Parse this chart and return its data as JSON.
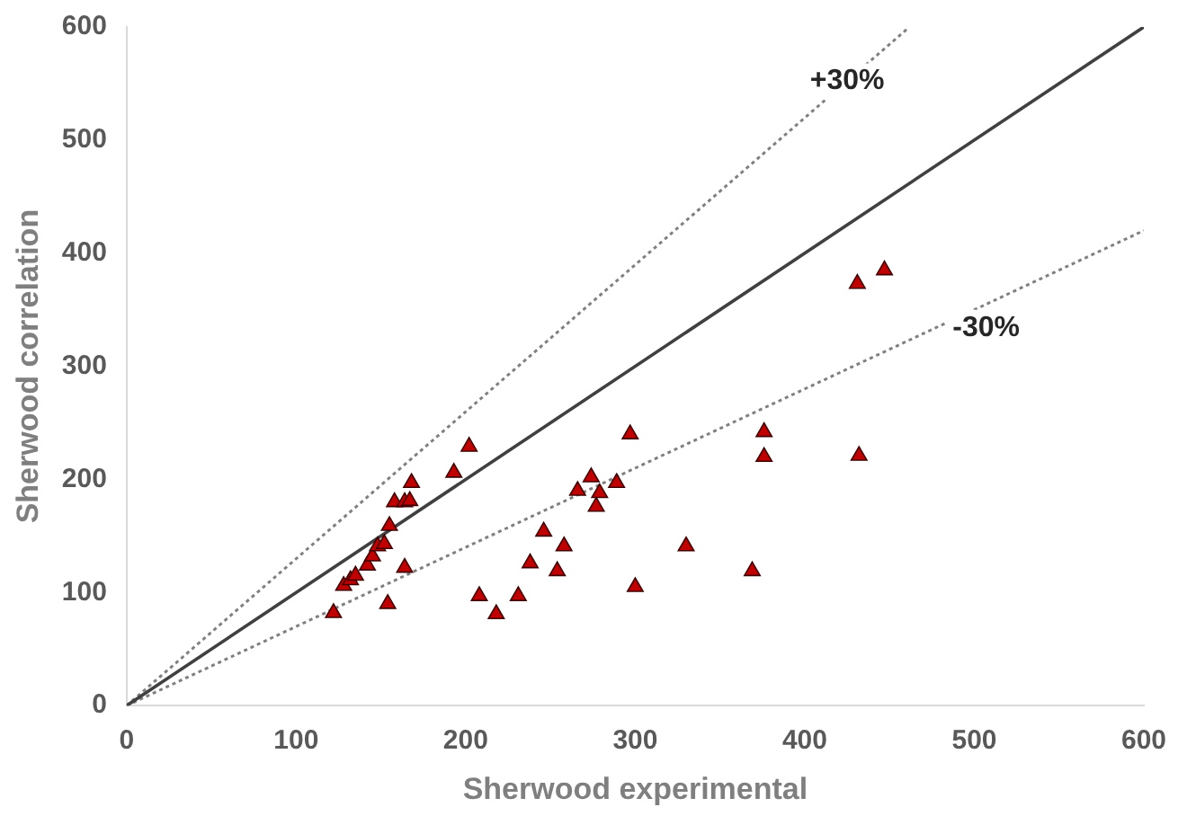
{
  "chart_data": {
    "type": "scatter",
    "xlabel": "Sherwood experimental",
    "ylabel": "Sherwood correlation",
    "xlim": [
      0,
      600
    ],
    "ylim": [
      0,
      600
    ],
    "xticks": [
      0,
      100,
      200,
      300,
      400,
      500,
      600
    ],
    "yticks": [
      0,
      100,
      200,
      300,
      400,
      500,
      600
    ],
    "grid": false,
    "legend": false,
    "annotations": [
      {
        "text": "+30%",
        "x": 425,
        "y": 552
      },
      {
        "text": "-30%",
        "x": 507,
        "y": 334
      }
    ],
    "series": [
      {
        "type": "scatter",
        "color": "#c00000",
        "marker": "triangle",
        "x": [
          122,
          128,
          132,
          135,
          142,
          145,
          148,
          152,
          155,
          158,
          164,
          168,
          167,
          164,
          154,
          193,
          202,
          208,
          218,
          231,
          238,
          246,
          254,
          258,
          266,
          274,
          277,
          279,
          289,
          297,
          300,
          330,
          369,
          376,
          376,
          431,
          447,
          432
        ],
        "values": [
          82,
          106,
          111,
          115,
          124,
          132,
          141,
          143,
          159,
          180,
          180,
          197,
          181,
          122,
          90,
          206,
          229,
          97,
          81,
          97,
          126,
          154,
          119,
          141,
          190,
          202,
          176,
          188,
          197,
          240,
          105,
          141,
          119,
          242,
          220,
          373,
          385,
          221
        ]
      },
      {
        "type": "line",
        "color": "#404040",
        "marker": "none",
        "line_style": "solid",
        "x": [
          0,
          600
        ],
        "values": [
          0,
          600
        ]
      },
      {
        "type": "line",
        "color": "#808080",
        "marker": "none",
        "line_style": "dotted",
        "x": [
          0,
          461
        ],
        "values": [
          0,
          599
        ]
      },
      {
        "type": "line",
        "color": "#808080",
        "marker": "none",
        "line_style": "dotted",
        "x": [
          0,
          600
        ],
        "values": [
          0,
          420
        ]
      }
    ]
  }
}
